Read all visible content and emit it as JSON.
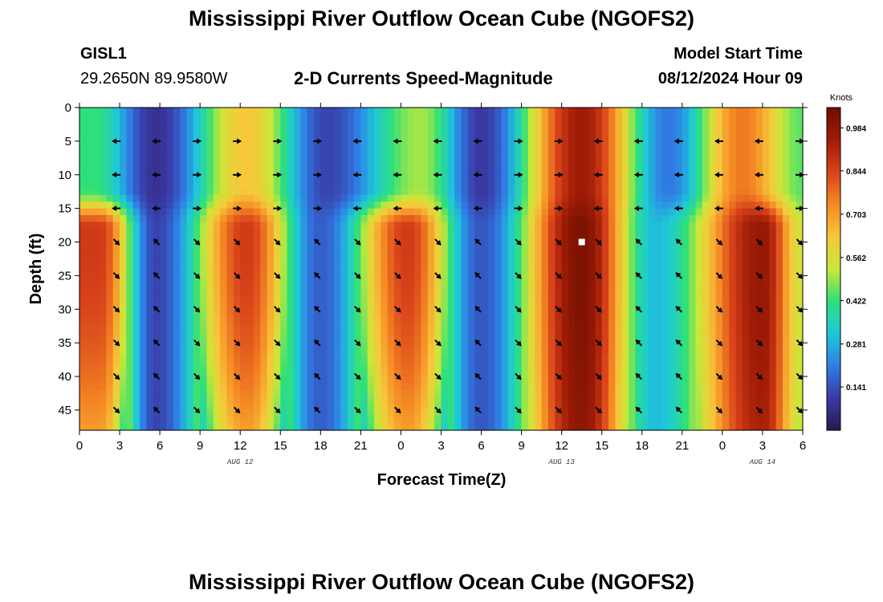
{
  "header": {
    "title": "Mississippi River Outflow Ocean Cube (NGOFS2)",
    "station_id": "GISL1",
    "station_coords": "29.2650N  89.9580W",
    "subtitle": "2-D Currents Speed-Magnitude",
    "model_start_label": "Model Start Time",
    "model_start_value": "08/12/2024 Hour 09"
  },
  "footer": {
    "title": "Mississippi River Outflow Ocean Cube (NGOFS2)"
  },
  "chart_data": {
    "type": "heatmap",
    "title": "2-D Currents Speed-Magnitude",
    "xlabel": "Forecast Time(Z)",
    "ylabel": "Depth (ft)",
    "x_range_hours": [
      0,
      54
    ],
    "y_range_ft": [
      0,
      48
    ],
    "y_inverted": true,
    "x_ticks": [
      {
        "h": 0,
        "label": "0"
      },
      {
        "h": 3,
        "label": "3"
      },
      {
        "h": 6,
        "label": "6"
      },
      {
        "h": 9,
        "label": "9"
      },
      {
        "h": 12,
        "label": "12"
      },
      {
        "h": 15,
        "label": "15"
      },
      {
        "h": 18,
        "label": "18"
      },
      {
        "h": 21,
        "label": "21"
      },
      {
        "h": 24,
        "label": "0"
      },
      {
        "h": 27,
        "label": "3"
      },
      {
        "h": 30,
        "label": "6"
      },
      {
        "h": 33,
        "label": "9"
      },
      {
        "h": 36,
        "label": "12"
      },
      {
        "h": 39,
        "label": "15"
      },
      {
        "h": 42,
        "label": "18"
      },
      {
        "h": 45,
        "label": "21"
      },
      {
        "h": 48,
        "label": "0"
      },
      {
        "h": 51,
        "label": "3"
      },
      {
        "h": 54,
        "label": "6"
      }
    ],
    "date_labels": [
      {
        "h": 12,
        "label": "AUG 12"
      },
      {
        "h": 36,
        "label": "AUG 13"
      },
      {
        "h": 51,
        "label": "AUG 14"
      }
    ],
    "y_ticks": [
      0,
      5,
      10,
      15,
      20,
      25,
      30,
      35,
      40,
      45
    ],
    "colorbar": {
      "unit": "Knots",
      "min": 0.0,
      "max": 1.05,
      "tick_values": [
        0.141,
        0.281,
        0.422,
        0.562,
        0.703,
        0.844,
        0.984
      ],
      "tick_labels": [
        "0.141",
        "0.281",
        "0.422",
        "0.562",
        "0.703",
        "0.844",
        "0.984"
      ],
      "colors": [
        "#2a1a4e",
        "#3a3aa6",
        "#2f7fe6",
        "#1fc8d8",
        "#2ee07a",
        "#c8e838",
        "#f7c73a",
        "#f58a25",
        "#d8421a",
        "#a01c06",
        "#6e0e02"
      ]
    },
    "surface_layer": {
      "depth_range_ft": [
        0,
        16
      ],
      "peaks": [
        {
          "hour": 1,
          "speed": 0.42
        },
        {
          "hour": 5.7,
          "speed": 0.08
        },
        {
          "hour": 12.5,
          "speed": 0.63
        },
        {
          "hour": 18.5,
          "speed": 0.12
        },
        {
          "hour": 25.5,
          "speed": 0.5
        },
        {
          "hour": 30,
          "speed": 0.1
        },
        {
          "hour": 37.5,
          "speed": 0.95
        },
        {
          "hour": 44,
          "speed": 0.2
        },
        {
          "hour": 49.5,
          "speed": 0.76
        },
        {
          "hour": 54,
          "speed": 0.45
        }
      ]
    },
    "bottom_layer": {
      "depth_range_ft": [
        17,
        48
      ],
      "peaks": [
        {
          "hour": 1.5,
          "speed": 0.86
        },
        {
          "hour": 5.7,
          "speed": 0.12
        },
        {
          "hour": 12.5,
          "speed": 0.86
        },
        {
          "hour": 18,
          "speed": 0.16
        },
        {
          "hour": 24.5,
          "speed": 0.86
        },
        {
          "hour": 30,
          "speed": 0.15
        },
        {
          "hour": 37.5,
          "speed": 1.02
        },
        {
          "hour": 43,
          "speed": 0.3
        },
        {
          "hour": 51,
          "speed": 0.97
        },
        {
          "hour": 54,
          "speed": 0.55
        }
      ]
    },
    "vector_columns_hours": [
      3,
      6,
      9,
      12,
      15,
      18,
      21,
      24,
      27,
      30,
      33,
      36,
      39,
      42,
      45,
      48,
      51,
      54
    ],
    "vector_rows_ft": [
      5,
      10,
      15,
      20,
      25,
      30,
      35,
      40,
      45
    ],
    "vector_directions": {
      "surface_westward_cols": [
        3,
        6,
        21,
        24,
        27,
        30,
        39,
        42,
        45,
        48,
        51
      ],
      "surface_eastward_cols": [
        9,
        12,
        15,
        18,
        33,
        36,
        54
      ],
      "bottom_northwest_cols": [
        6,
        18,
        30,
        42,
        45
      ],
      "bottom_southeast_cols": [
        3,
        9,
        12,
        15,
        21,
        24,
        27,
        33,
        36,
        39,
        48,
        51,
        54
      ]
    },
    "marker": {
      "hour": 37.5,
      "depth_ft": 20
    }
  }
}
